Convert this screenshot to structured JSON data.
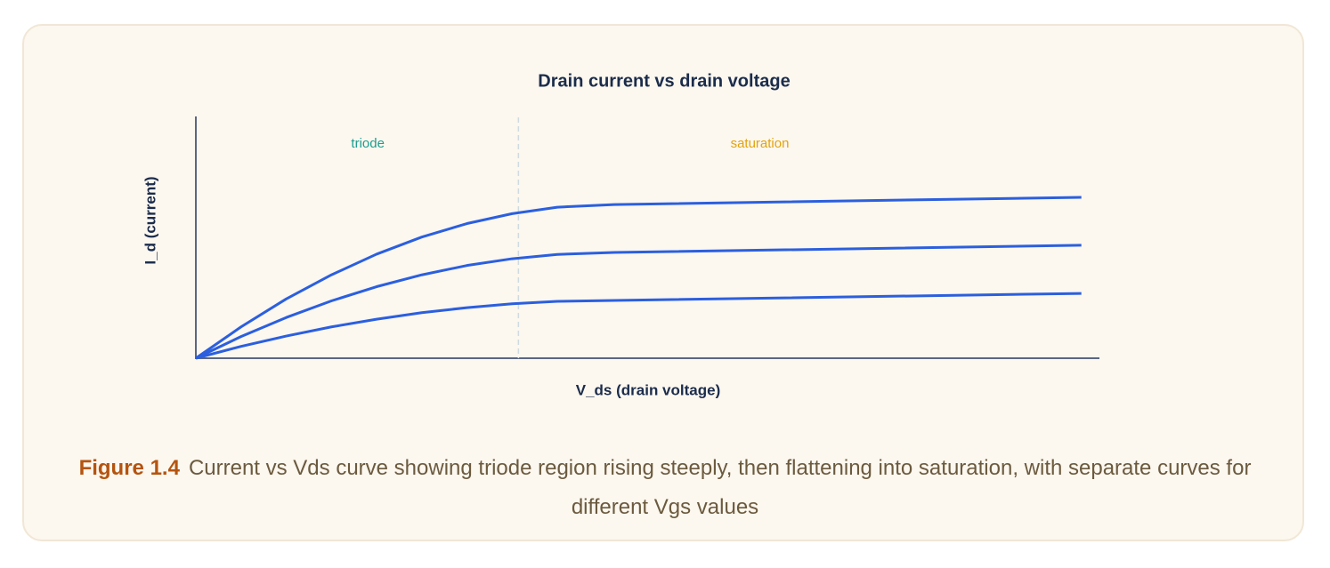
{
  "chart_data": {
    "type": "line",
    "title": "Drain current vs drain voltage",
    "x_label": "V_ds (drain voltage)",
    "y_label": "I_d (current)",
    "x": [
      0,
      0.5,
      1,
      1.5,
      2,
      2.5,
      3,
      3.5,
      4,
      4.63,
      9.8
    ],
    "series": [
      {
        "color": "#2b5fde",
        "values": [
          0,
          1.3,
          2.46,
          3.46,
          4.32,
          5.03,
          5.59,
          6.0,
          6.27,
          6.38,
          6.68
        ]
      },
      {
        "color": "#2b5fde",
        "values": [
          0,
          0.9,
          1.69,
          2.38,
          2.97,
          3.46,
          3.85,
          4.13,
          4.31,
          4.39,
          4.69
        ]
      },
      {
        "color": "#2b5fde",
        "values": [
          0,
          0.49,
          0.92,
          1.3,
          1.62,
          1.89,
          2.1,
          2.26,
          2.36,
          2.4,
          2.69
        ]
      }
    ],
    "xlim": [
      0,
      10
    ],
    "ylim": [
      0,
      10
    ],
    "divider_x": 3.57,
    "regions": [
      {
        "label": "triode",
        "color": "#1a9e8f"
      },
      {
        "label": "saturation",
        "color": "#e2a30c"
      }
    ]
  },
  "caption": {
    "label": "Figure 1.4",
    "text": "Current vs Vds curve showing triode region rising steeply, then flattening into saturation, with separate curves for different Vgs values"
  }
}
